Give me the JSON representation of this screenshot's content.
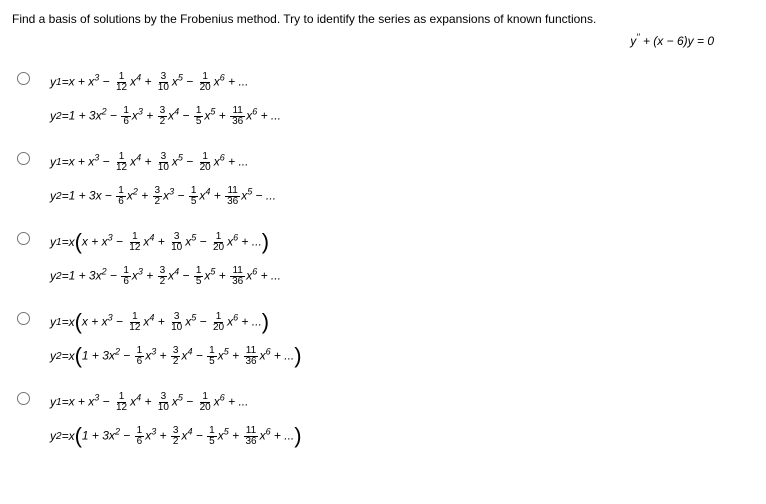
{
  "question": "Find a basis of solutions by the Frobenius method. Try to identify the series as expansions of known functions.",
  "main_equation_parts": {
    "lhs": "y",
    "dprime": "′′",
    "mid": " + (x − 6)y = 0"
  },
  "series_a": {
    "t0": "x + x",
    "p0": "3",
    "t1": " − ",
    "f1n": "1",
    "f1d": "12",
    "t2": "x",
    "p2": "4",
    "t3": " + ",
    "f3n": "3",
    "f3d": "10",
    "t4": "x",
    "p4": "5",
    "t5": " − ",
    "f5n": "1",
    "f5d": "20",
    "t6": "x",
    "p6": "6",
    "t7": " + ..."
  },
  "series_b": {
    "t0": "1 + 3x",
    "p0": "2",
    "t1": " − ",
    "f1n": "1",
    "f1d": "6",
    "t2": "x",
    "p2": "3",
    "t3": " + ",
    "f3n": "3",
    "f3d": "2",
    "t4": "x",
    "p4": "4",
    "t5": " − ",
    "f5n": "1",
    "f5d": "5",
    "t6": "x",
    "p6": "5",
    "t7": " + ",
    "f7n": "11",
    "f7d": "36",
    "t8": "x",
    "p8": "6",
    "t9": " + ..."
  },
  "series_c": {
    "t0": "1 + 3x − ",
    "f1n": "1",
    "f1d": "6",
    "t2": "x",
    "p2": "2",
    "t3": " + ",
    "f3n": "3",
    "f3d": "2",
    "t4": "x",
    "p4": "3",
    "t5": " − ",
    "f5n": "1",
    "f5d": "5",
    "t6": "x",
    "p6": "4",
    "t7": " + ",
    "f7n": "11",
    "f7d": "36",
    "t8": "x",
    "p8": "5",
    "t9": " − ..."
  },
  "labels": {
    "y1": "y",
    "sub1": "1",
    "eq": " = ",
    "y2": "y",
    "sub2": "2",
    "x_times": "x"
  }
}
